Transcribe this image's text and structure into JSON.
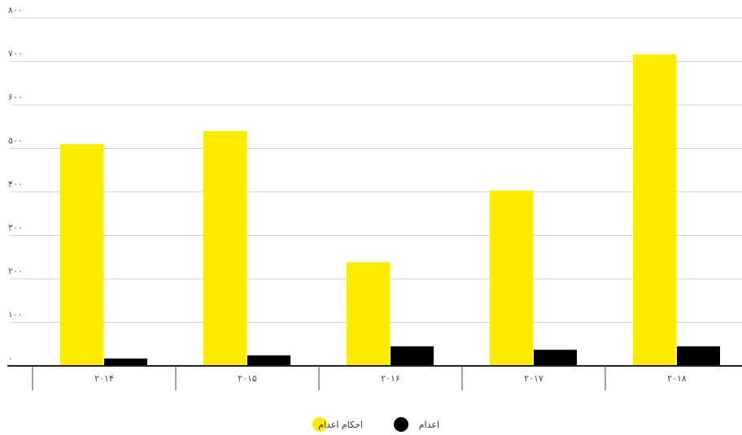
{
  "chart_data": {
    "type": "bar",
    "categories": [
      "۲۰۱۴",
      "۲۰۱۵",
      "۲۰۱۶",
      "۲۰۱۷",
      "۲۰۱۸"
    ],
    "series": [
      {
        "name": "احکام اعدام",
        "color": "#ffeb00",
        "values": [
          510,
          540,
          238,
          403,
          716
        ]
      },
      {
        "name": "اعدام",
        "color": "#000000",
        "values": [
          17,
          24,
          45,
          37,
          45
        ]
      }
    ],
    "ylim": [
      0,
      800
    ],
    "yticks": [
      0,
      100,
      200,
      300,
      400,
      500,
      600,
      700,
      800
    ],
    "ytick_labels": [
      "۰",
      "۱۰۰",
      "۲۰۰",
      "۳۰۰",
      "۴۰۰",
      "۵۰۰",
      "۶۰۰",
      "۷۰۰",
      "۸۰۰"
    ],
    "grid": true,
    "legend_position": "bottom-center",
    "title": "",
    "xlabel": "",
    "ylabel": ""
  }
}
